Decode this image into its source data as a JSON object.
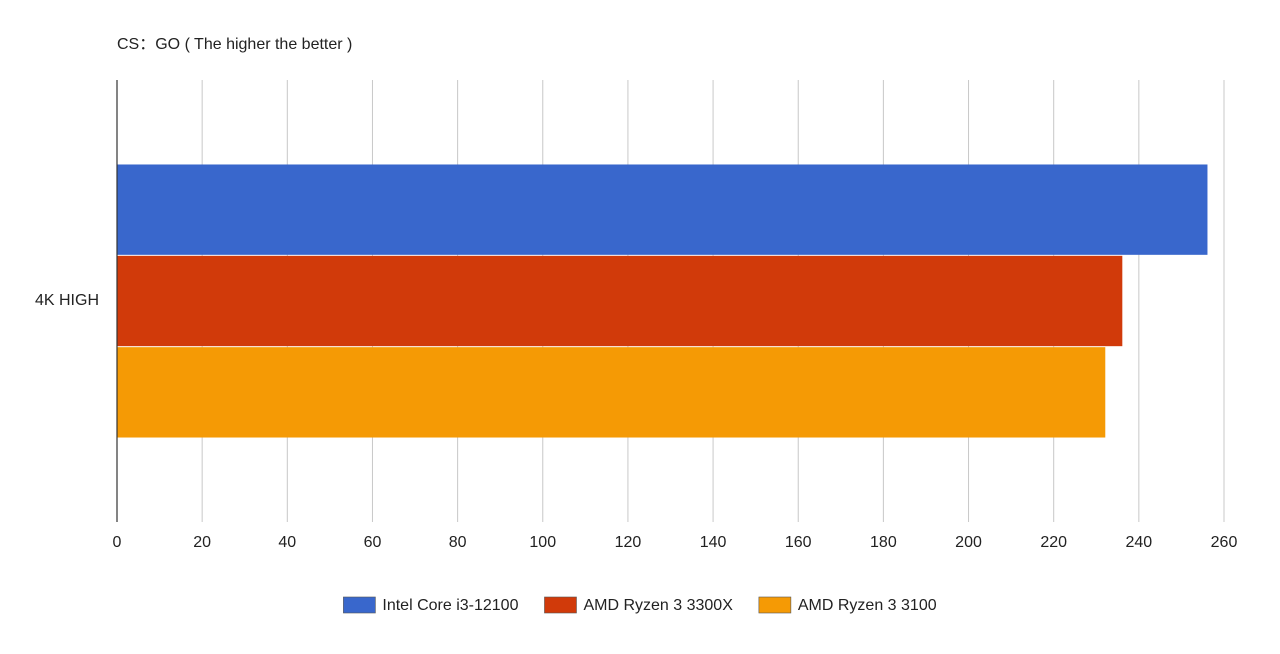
{
  "chart_data": {
    "type": "barh",
    "title": "CS：GO ( The higher the better )",
    "categories": [
      "4K HIGH"
    ],
    "series": [
      {
        "name": "Intel Core i3-12100",
        "color": "#3967cc",
        "values": [
          256
        ]
      },
      {
        "name": "AMD Ryzen 3 3300X",
        "color": "#d13a0a",
        "values": [
          236
        ]
      },
      {
        "name": "AMD Ryzen 3 3100",
        "color": "#f59a05",
        "values": [
          232
        ]
      }
    ],
    "xlim": [
      0,
      260
    ],
    "xticks": [
      0,
      20,
      40,
      60,
      80,
      100,
      120,
      140,
      160,
      180,
      200,
      220,
      240,
      260
    ],
    "grid": true
  }
}
